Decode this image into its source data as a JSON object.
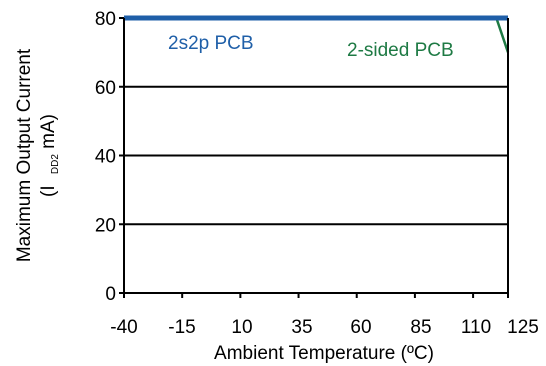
{
  "chart_data": {
    "type": "line",
    "xlabel": "Ambient Temperature (ºC)",
    "ylabel_line1": "Maximum Output Current",
    "ylabel_line2_prefix": "(I",
    "ylabel_line2_sub": "DD2",
    "ylabel_line2_suffix": " mA)",
    "xlim": [
      -40,
      125
    ],
    "ylim": [
      0,
      80
    ],
    "x_ticks": [
      -40,
      -15,
      10,
      35,
      60,
      85,
      110,
      125
    ],
    "y_ticks": [
      0,
      20,
      40,
      60,
      80
    ],
    "grid": "horizontal",
    "series": [
      {
        "name": "2s2p PCB",
        "color": "#1f5fa8",
        "x": [
          -40,
          125
        ],
        "y": [
          80,
          80
        ]
      },
      {
        "name": "2-sided PCB",
        "color": "#1e7a44",
        "x": [
          -40,
          120,
          125
        ],
        "y": [
          80,
          80,
          70
        ]
      }
    ]
  }
}
